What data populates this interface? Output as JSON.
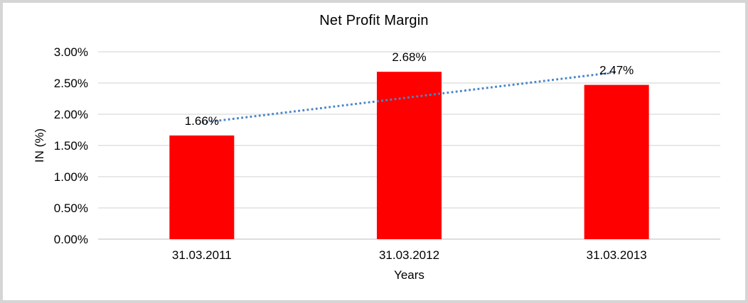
{
  "chart_data": {
    "type": "bar",
    "title": "Net Profit Margin",
    "categories": [
      "31.03.2011",
      "31.03.2012",
      "31.03.2013"
    ],
    "values": [
      1.66,
      2.68,
      2.47
    ],
    "data_labels": [
      "1.66%",
      "2.68%",
      "2.47%"
    ],
    "xlabel": "Years",
    "ylabel": "IN (%)",
    "ylim": [
      0,
      3
    ],
    "ytick_values": [
      0,
      0.5,
      1,
      1.5,
      2,
      2.5,
      3
    ],
    "ytick_labels": [
      "0.00%",
      "0.50%",
      "1.00%",
      "1.50%",
      "2.00%",
      "2.50%",
      "3.00%"
    ],
    "grid": true,
    "legend": false,
    "bar_color": "#FF0000",
    "trendline": {
      "type": "linear",
      "style": "dotted",
      "color": "#4A86C8",
      "start_category_index": 0,
      "end_category_index": 2,
      "start_value": 1.865,
      "end_value": 2.675
    }
  },
  "colors": {
    "background": "#FFFFFF",
    "frame_border": "#D5D5D5",
    "gridline": "#D9D9D9",
    "baseline": "#C9C9C9",
    "text": "#000000"
  }
}
